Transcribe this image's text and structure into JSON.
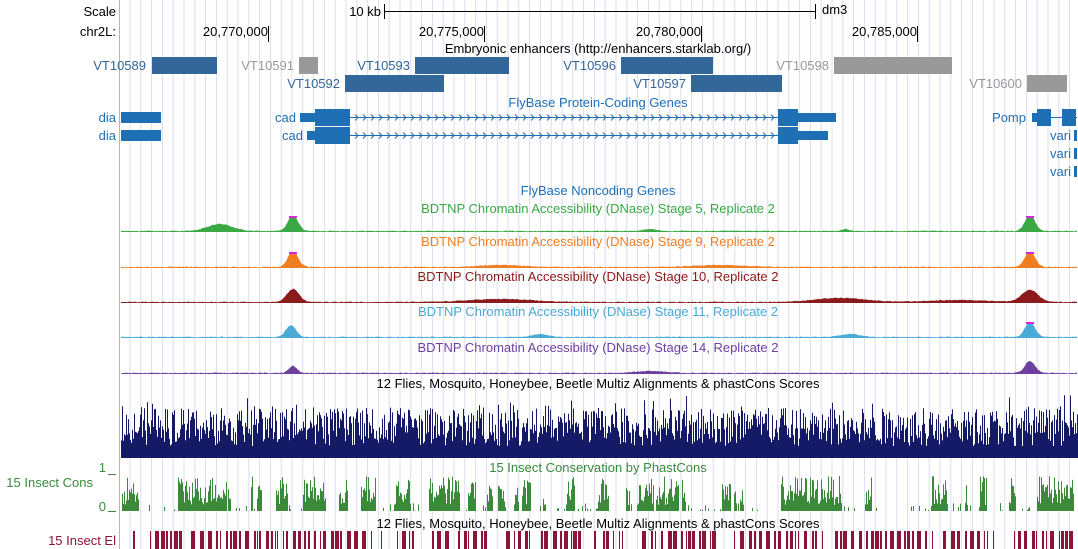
{
  "ruler": {
    "scale_label": "Scale",
    "chrom_label": "chr2L:",
    "scale_bar": "10 kb",
    "assembly": "dm3",
    "positions": [
      "20,770,000",
      "20,775,000",
      "20,780,000",
      "20,785,000"
    ]
  },
  "colors": {
    "enhancer_active": "#336699",
    "enhancer_inactive": "#999999",
    "gene": "#1f6fb4",
    "stage5": "#3aa843",
    "stage9": "#f07e20",
    "stage10": "#8b1a1a",
    "stage11": "#4aaad6",
    "stage14": "#6f3fa0",
    "multiz": "#151a66",
    "phastcons": "#3a8a3a",
    "elements": "#8b1538",
    "peak_tip": "#dd22dd",
    "grid": "#ccccee",
    "left_line": "#ff9999"
  },
  "tracks": {
    "enhancers": {
      "title": "Embryonic enhancers (http://enhancers.starklab.org/)",
      "items": [
        {
          "name": "VT10589",
          "active": true
        },
        {
          "name": "VT10591",
          "active": false
        },
        {
          "name": "VT10593",
          "active": true
        },
        {
          "name": "VT10592",
          "active": true
        },
        {
          "name": "VT10596",
          "active": true
        },
        {
          "name": "VT10597",
          "active": true
        },
        {
          "name": "VT10598",
          "active": false
        },
        {
          "name": "VT10600",
          "active": false
        }
      ]
    },
    "genes": {
      "title": "FlyBase Protein-Coding Genes",
      "items": [
        "dia",
        "dia",
        "cad",
        "cad",
        "Pomp",
        "vari",
        "vari",
        "vari"
      ]
    },
    "noncoding": {
      "title": "FlyBase Noncoding Genes"
    },
    "dnase": [
      {
        "title": "BDTNP Chromatin Accessibility (DNase) Stage 5, Replicate 2",
        "color_key": "stage5"
      },
      {
        "title": "BDTNP Chromatin Accessibility (DNase) Stage 9, Replicate 2",
        "color_key": "stage9"
      },
      {
        "title": "BDTNP Chromatin Accessibility (DNase) Stage 10, Replicate 2",
        "color_key": "stage10"
      },
      {
        "title": "BDTNP Chromatin Accessibility (DNase) Stage 11, Replicate 2",
        "color_key": "stage11"
      },
      {
        "title": "BDTNP Chromatin Accessibility (DNase) Stage 14, Replicate 2",
        "color_key": "stage14"
      }
    ],
    "multiz": {
      "title": "12 Flies, Mosquito, Honeybee, Beetle Multiz Alignments & phastCons Scores"
    },
    "phastcons": {
      "title": "15 Insect Conservation by PhastCons",
      "side_label": "15 Insect Cons",
      "axis_max": "1",
      "axis_min": "0"
    },
    "elements": {
      "title": "12 Flies, Mosquito, Honeybee, Beetle Multiz Alignments & phastCons Scores",
      "side_label": "15 Insect El"
    }
  }
}
